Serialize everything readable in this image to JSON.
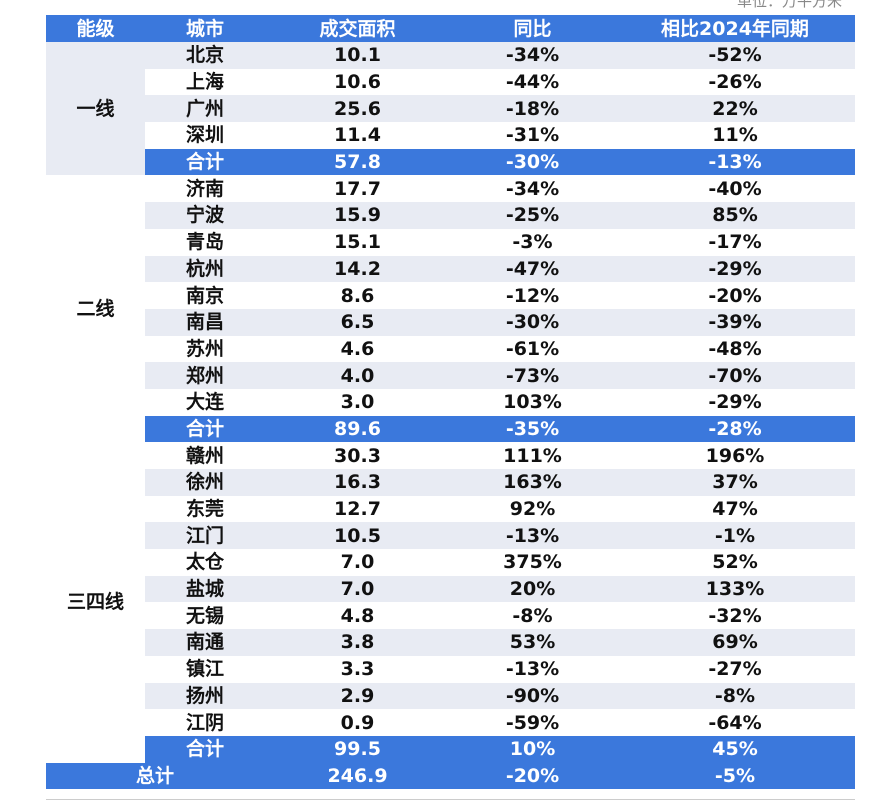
{
  "unit": "单位：万平方米",
  "header": [
    "能级",
    "城市",
    "成交面积",
    "同比",
    "相比2024年同期"
  ],
  "groups": [
    {
      "tier": "一线",
      "rows": [
        [
          "北京",
          "10.1",
          "-34%",
          "-52%"
        ],
        [
          "上海",
          "10.6",
          "-44%",
          "-26%"
        ],
        [
          "广州",
          "25.6",
          "-18%",
          "22%"
        ],
        [
          "深圳",
          "11.4",
          "-31%",
          "11%"
        ]
      ],
      "subtotal": [
        "合计",
        "57.8",
        "-30%",
        "-13%"
      ]
    },
    {
      "tier": "二线",
      "rows": [
        [
          "济南",
          "17.7",
          "-34%",
          "-40%"
        ],
        [
          "宁波",
          "15.9",
          "-25%",
          "85%"
        ],
        [
          "青岛",
          "15.1",
          "-3%",
          "-17%"
        ],
        [
          "杭州",
          "14.2",
          "-47%",
          "-29%"
        ],
        [
          "南京",
          "8.6",
          "-12%",
          "-20%"
        ],
        [
          "南昌",
          "6.5",
          "-30%",
          "-39%"
        ],
        [
          "苏州",
          "4.6",
          "-61%",
          "-48%"
        ],
        [
          "郑州",
          "4.0",
          "-73%",
          "-70%"
        ],
        [
          "大连",
          "3.0",
          "103%",
          "-29%"
        ]
      ],
      "subtotal": [
        "合计",
        "89.6",
        "-35%",
        "-28%"
      ]
    },
    {
      "tier": "三四线",
      "rows": [
        [
          "赣州",
          "30.3",
          "111%",
          "196%"
        ],
        [
          "徐州",
          "16.3",
          "163%",
          "37%"
        ],
        [
          "东莞",
          "12.7",
          "92%",
          "47%"
        ],
        [
          "江门",
          "10.5",
          "-13%",
          "-1%"
        ],
        [
          "太仓",
          "7.0",
          "375%",
          "52%"
        ],
        [
          "盐城",
          "7.0",
          "20%",
          "133%"
        ],
        [
          "无锡",
          "4.8",
          "-8%",
          "-32%"
        ],
        [
          "南通",
          "3.8",
          "53%",
          "69%"
        ],
        [
          "镇江",
          "3.3",
          "-13%",
          "-27%"
        ],
        [
          "扬州",
          "2.9",
          "-90%",
          "-8%"
        ],
        [
          "江阴",
          "0.9",
          "-59%",
          "-64%"
        ]
      ],
      "subtotal": [
        "合计",
        "99.5",
        "10%",
        "45%"
      ]
    }
  ],
  "total": [
    "总计",
    "246.9",
    "-20%",
    "-5%"
  ]
}
